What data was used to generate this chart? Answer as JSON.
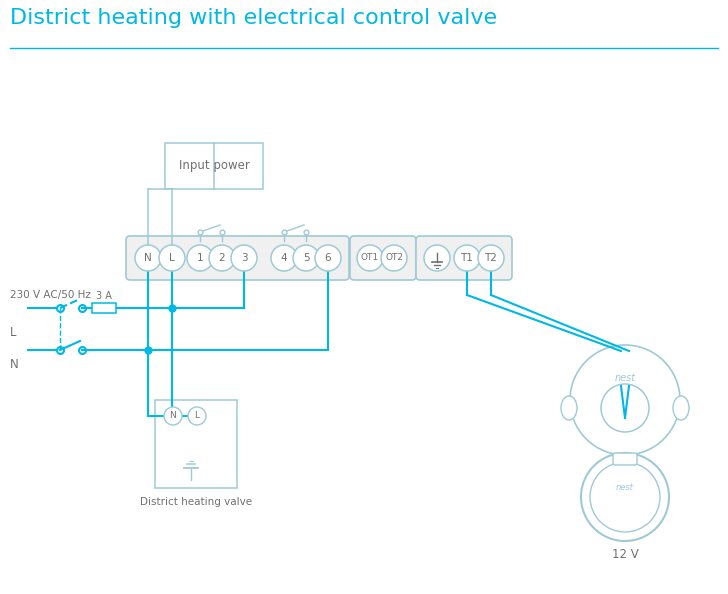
{
  "title": "District heating with electrical control valve",
  "title_color": "#00b8e6",
  "line_color": "#00b8e6",
  "outline_color": "#9ecad6",
  "text_color": "#707070",
  "bg_color": "#ffffff",
  "input_power_label": "Input power",
  "district_valve_label": "District heating valve",
  "voltage_label": "230 V AC/50 Hz",
  "fuse_label": "3 A",
  "L_label": "L",
  "N_label": "N",
  "nest_label": "12 V"
}
